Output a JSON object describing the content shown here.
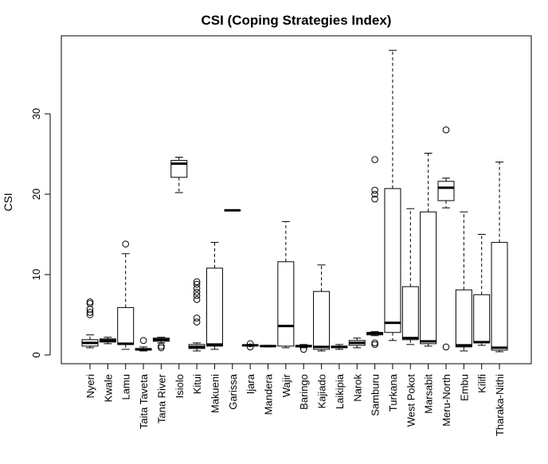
{
  "chart_data": {
    "type": "boxplot",
    "title": "CSI  (Coping Strategies Index)",
    "xlabel": "",
    "ylabel": "CSI",
    "ylim": [
      0,
      38
    ],
    "y_ticks": [
      0,
      10,
      20,
      30
    ],
    "grid": false,
    "legend": "none",
    "categories": [
      "Nyeri",
      "Kwale",
      "Lamu",
      "Taita Taveta",
      "Tana River",
      "Isiolo",
      "Kitui",
      "Makueni",
      "Garissa",
      "Ijara",
      "Mandera",
      "Wajir",
      "Baringo",
      "Kajiado",
      "Laikipia",
      "Narok",
      "Samburu",
      "Turkana",
      "West Pokot",
      "Marsabit",
      "Meru-North",
      "Embu",
      "Kilifi",
      "Tharaka-Nithi"
    ],
    "boxes": [
      {
        "whisker_low": 0.9,
        "q1": 1.1,
        "median": 1.5,
        "q3": 1.9,
        "whisker_high": 2.5,
        "outliers": [
          5.0,
          5.3,
          5.7,
          6.4,
          6.6
        ]
      },
      {
        "whisker_low": 1.4,
        "q1": 1.6,
        "median": 1.8,
        "q3": 2.0,
        "whisker_high": 2.2,
        "outliers": []
      },
      {
        "whisker_low": 0.7,
        "q1": 1.3,
        "median": 1.4,
        "q3": 5.9,
        "whisker_high": 12.6,
        "outliers": [
          13.8
        ]
      },
      {
        "whisker_low": 0.5,
        "q1": 0.6,
        "median": 0.7,
        "q3": 0.8,
        "whisker_high": 1.0,
        "outliers": [
          1.8
        ]
      },
      {
        "whisker_low": 1.5,
        "q1": 1.7,
        "median": 1.9,
        "q3": 2.1,
        "whisker_high": 2.2,
        "outliers": [
          0.9,
          1.1
        ]
      },
      {
        "whisker_low": 20.2,
        "q1": 22.1,
        "median": 23.8,
        "q3": 24.2,
        "whisker_high": 24.6,
        "outliers": []
      },
      {
        "whisker_low": 0.5,
        "q1": 0.8,
        "median": 1.0,
        "q3": 1.3,
        "whisker_high": 1.5,
        "outliers": [
          4.1,
          4.6,
          6.9,
          7.4,
          7.8,
          8.3,
          8.8,
          9.1
        ]
      },
      {
        "whisker_low": 0.7,
        "q1": 1.1,
        "median": 1.3,
        "q3": 10.8,
        "whisker_high": 14.0,
        "outliers": []
      },
      {
        "whisker_low": 18.0,
        "q1": 18.0,
        "median": 18.0,
        "q3": 18.0,
        "whisker_high": 18.0,
        "outliers": []
      },
      {
        "whisker_low": 1.1,
        "q1": 1.15,
        "median": 1.2,
        "q3": 1.25,
        "whisker_high": 1.3,
        "outliers": [
          1.0,
          1.4
        ]
      },
      {
        "whisker_low": 1.0,
        "q1": 1.05,
        "median": 1.1,
        "q3": 1.15,
        "whisker_high": 1.2,
        "outliers": []
      },
      {
        "whisker_low": 0.9,
        "q1": 1.1,
        "median": 3.6,
        "q3": 11.6,
        "whisker_high": 16.6,
        "outliers": []
      },
      {
        "whisker_low": 0.9,
        "q1": 1.0,
        "median": 1.1,
        "q3": 1.2,
        "whisker_high": 1.3,
        "outliers": [
          0.7
        ]
      },
      {
        "whisker_low": 0.5,
        "q1": 0.7,
        "median": 1.0,
        "q3": 7.9,
        "whisker_high": 11.2,
        "outliers": []
      },
      {
        "whisker_low": 0.7,
        "q1": 0.9,
        "median": 1.0,
        "q3": 1.1,
        "whisker_high": 1.3,
        "outliers": []
      },
      {
        "whisker_low": 0.9,
        "q1": 1.2,
        "median": 1.5,
        "q3": 1.8,
        "whisker_high": 2.1,
        "outliers": []
      },
      {
        "whisker_low": 2.4,
        "q1": 2.5,
        "median": 2.7,
        "q3": 2.8,
        "whisker_high": 2.9,
        "outliers": [
          1.3,
          1.5,
          19.4,
          20.0,
          20.5,
          24.3
        ]
      },
      {
        "whisker_low": 1.8,
        "q1": 2.8,
        "median": 4.0,
        "q3": 20.7,
        "whisker_high": 37.9,
        "outliers": []
      },
      {
        "whisker_low": 1.3,
        "q1": 1.9,
        "median": 2.1,
        "q3": 8.5,
        "whisker_high": 18.2,
        "outliers": []
      },
      {
        "whisker_low": 1.1,
        "q1": 1.4,
        "median": 1.7,
        "q3": 17.8,
        "whisker_high": 25.1,
        "outliers": []
      },
      {
        "whisker_low": 18.3,
        "q1": 19.2,
        "median": 20.8,
        "q3": 21.6,
        "whisker_high": 22.0,
        "outliers": [
          1.0,
          28.0
        ]
      },
      {
        "whisker_low": 0.5,
        "q1": 1.0,
        "median": 1.2,
        "q3": 8.1,
        "whisker_high": 17.8,
        "outliers": []
      },
      {
        "whisker_low": 1.2,
        "q1": 1.5,
        "median": 1.6,
        "q3": 7.5,
        "whisker_high": 15.0,
        "outliers": []
      },
      {
        "whisker_low": 0.4,
        "q1": 0.6,
        "median": 0.9,
        "q3": 14.0,
        "whisker_high": 24.0,
        "outliers": []
      }
    ]
  }
}
